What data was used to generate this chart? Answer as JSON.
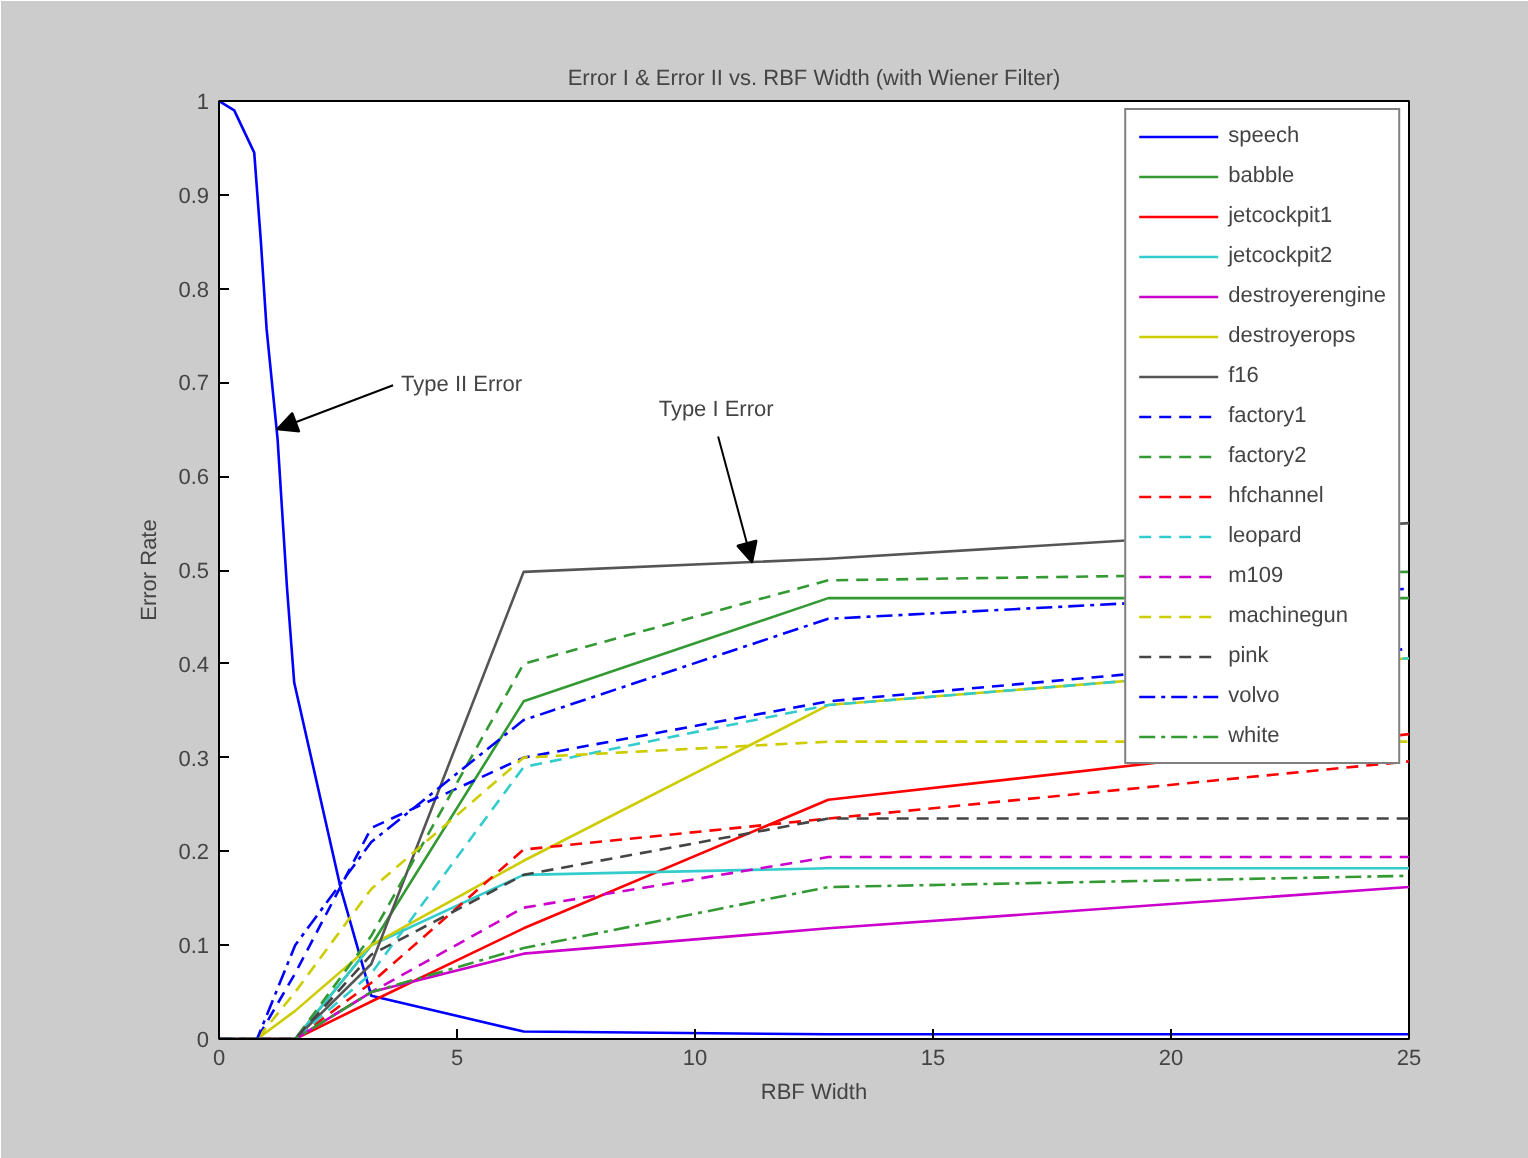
{
  "chart_data": {
    "type": "line",
    "title": "Error I & Error II vs. RBF Width (with Wiener Filter)",
    "xlabel": "RBF Width",
    "ylabel": "Error Rate",
    "x": [
      0,
      0.8,
      1.6,
      3.2,
      6.4,
      12.8,
      25
    ],
    "xlim": [
      0,
      25
    ],
    "ylim": [
      0,
      1
    ],
    "xticks": [
      0,
      5,
      10,
      15,
      20,
      25
    ],
    "yticks": [
      0,
      0.1,
      0.2,
      0.3,
      0.4,
      0.5,
      0.6,
      0.7,
      0.8,
      0.9,
      1
    ],
    "grid": false,
    "legend": "top right",
    "marker": "none",
    "annotations": [
      {
        "text": "Type II Error",
        "x": 1.22,
        "y": 0.65
      },
      {
        "text": "Type I Error",
        "x": 11.2,
        "y": 0.508
      }
    ],
    "series": [
      {
        "name": "speech",
        "color": "#0000ff",
        "line_style": "solid",
        "x": [
          0,
          0.32,
          0.74,
          0.88,
          1.0,
          1.23,
          1.43,
          1.58,
          2.56,
          3.2,
          6.4,
          12.8,
          25
        ],
        "values": [
          1,
          0.99,
          0.945,
          0.85,
          0.757,
          0.64,
          0.48,
          0.38,
          0.16,
          0.046,
          0.008,
          0.005,
          0.005
        ]
      },
      {
        "name": "babble",
        "color": "#339933",
        "line_style": "solid",
        "x": [
          0,
          1.6,
          3.2,
          6.4,
          12.8,
          25
        ],
        "values": [
          0,
          0,
          0.1,
          0.36,
          0.47,
          0.47
        ]
      },
      {
        "name": "jetcockpit1",
        "color": "#ff0000",
        "line_style": "solid",
        "x": [
          0,
          1.6,
          3.2,
          6.4,
          12.8,
          25
        ],
        "values": [
          0,
          0,
          0.04,
          0.118,
          0.255,
          0.325
        ]
      },
      {
        "name": "jetcockpit2",
        "color": "#33cccc",
        "line_style": "solid",
        "x": [
          0,
          1.6,
          3.2,
          6.4,
          12.8,
          25
        ],
        "values": [
          0,
          0,
          0.1,
          0.175,
          0.182,
          0.182
        ]
      },
      {
        "name": "destroyerengine",
        "color": "#cc00cc",
        "line_style": "solid",
        "x": [
          0,
          1.6,
          3.2,
          6.4,
          12.8,
          25
        ],
        "values": [
          0,
          0,
          0.05,
          0.091,
          0.118,
          0.162
        ]
      },
      {
        "name": "destroyerops",
        "color": "#cccc00",
        "line_style": "solid",
        "values": [
          0,
          0,
          0.03,
          0.1,
          0.19,
          0.356,
          0.406
        ]
      },
      {
        "name": "f16",
        "color": "#555555",
        "line_style": "solid",
        "x": [
          0,
          1.6,
          3.2,
          6.4,
          12.8,
          25
        ],
        "values": [
          0,
          0,
          0.08,
          0.498,
          0.512,
          0.55
        ]
      },
      {
        "name": "factory1",
        "color": "#0000ff",
        "line_style": "dashed",
        "values": [
          0,
          0,
          0.07,
          0.225,
          0.3,
          0.36,
          0.416
        ]
      },
      {
        "name": "factory2",
        "color": "#339933",
        "line_style": "dashed",
        "x": [
          0,
          1.6,
          3.2,
          6.4,
          12.8,
          25
        ],
        "values": [
          0,
          0,
          0.11,
          0.4,
          0.489,
          0.498
        ]
      },
      {
        "name": "hfchannel",
        "color": "#ff0000",
        "line_style": "dashed",
        "x": [
          0,
          1.6,
          3.2,
          6.4,
          12.8,
          25
        ],
        "values": [
          0,
          0,
          0.06,
          0.202,
          0.235,
          0.296
        ]
      },
      {
        "name": "leopard",
        "color": "#33cccc",
        "line_style": "dashed",
        "x": [
          0,
          1.6,
          3.2,
          6.4,
          12.8,
          25
        ],
        "values": [
          0,
          0,
          0.07,
          0.29,
          0.356,
          0.406
        ]
      },
      {
        "name": "m109",
        "color": "#cc00cc",
        "line_style": "dashed",
        "x": [
          0,
          1.6,
          3.2,
          6.4,
          12.8,
          25
        ],
        "values": [
          0,
          0,
          0.05,
          0.14,
          0.194,
          0.194
        ]
      },
      {
        "name": "machinegun",
        "color": "#cccc00",
        "line_style": "dashed",
        "values": [
          0,
          0,
          0.05,
          0.16,
          0.3,
          0.317,
          0.317
        ]
      },
      {
        "name": "pink",
        "color": "#444444",
        "line_style": "dashed",
        "x": [
          0,
          1.6,
          3.2,
          6.4,
          12.8,
          25
        ],
        "values": [
          0,
          0,
          0.09,
          0.175,
          0.235,
          0.235
        ]
      },
      {
        "name": "volvo",
        "color": "#0000ff",
        "line_style": "dashdot",
        "values": [
          0,
          0,
          0.1,
          0.21,
          0.34,
          0.448,
          0.48
        ]
      },
      {
        "name": "white",
        "color": "#339933",
        "line_style": "dashdot",
        "x": [
          0,
          1.6,
          3.2,
          6.4,
          12.8,
          25
        ],
        "values": [
          0,
          0,
          0.05,
          0.097,
          0.162,
          0.174
        ]
      }
    ]
  }
}
